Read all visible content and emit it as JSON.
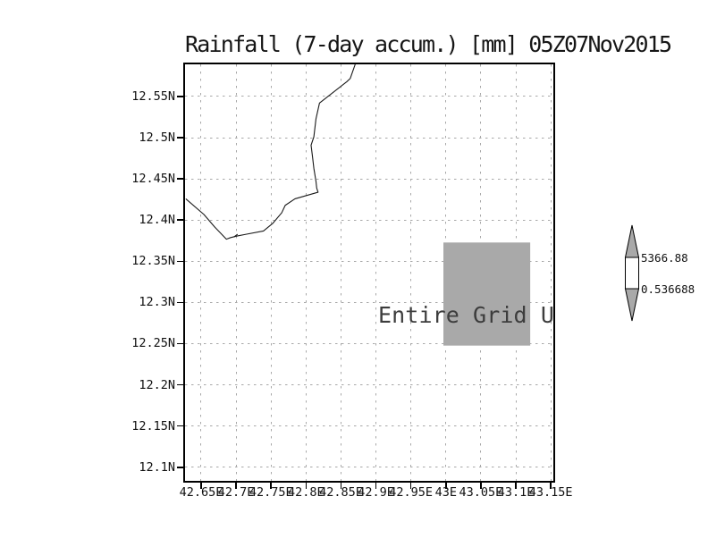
{
  "chart_data": {
    "type": "map",
    "title": "Rainfall (7-day accum.) [mm] 05Z07Nov2015",
    "annotation": "Entire Grid Undefined",
    "xlabel": "",
    "ylabel": "",
    "xlim": [
      42.627,
      43.153
    ],
    "ylim": [
      12.084,
      12.589
    ],
    "grid": "dashed",
    "legend_position": "right",
    "x_ticks": {
      "values": [
        42.65,
        42.7,
        42.75,
        42.8,
        42.85,
        42.9,
        42.95,
        43.0,
        43.05,
        43.1,
        43.15
      ],
      "labels": [
        "42.65E",
        "42.7E",
        "42.75E",
        "42.8E",
        "42.85E",
        "42.9E",
        "42.95E",
        "43E",
        "43.05E",
        "43.1E",
        "43.15E"
      ]
    },
    "y_ticks": {
      "values": [
        12.55,
        12.5,
        12.45,
        12.4,
        12.35,
        12.3,
        12.25,
        12.2,
        12.15,
        12.1
      ],
      "labels": [
        "12.55N",
        "12.5N",
        "12.45N",
        "12.4N",
        "12.35N",
        "12.3N",
        "12.25N",
        "12.2N",
        "12.15N",
        "12.1N"
      ]
    },
    "coastline_lonlat": [
      [
        42.87,
        12.589
      ],
      [
        42.863,
        12.572
      ],
      [
        42.858,
        12.568
      ],
      [
        42.819,
        12.542
      ],
      [
        42.814,
        12.523
      ],
      [
        42.811,
        12.501
      ],
      [
        42.807,
        12.491
      ],
      [
        42.809,
        12.477
      ],
      [
        42.811,
        12.463
      ],
      [
        42.814,
        12.447
      ],
      [
        42.815,
        12.439
      ],
      [
        42.817,
        12.434
      ],
      [
        42.784,
        12.426
      ],
      [
        42.77,
        12.418
      ],
      [
        42.765,
        12.409
      ],
      [
        42.752,
        12.396
      ],
      [
        42.739,
        12.387
      ],
      [
        42.714,
        12.383
      ],
      [
        42.702,
        12.381
      ],
      [
        42.692,
        12.379
      ],
      [
        42.686,
        12.377
      ],
      [
        42.669,
        12.392
      ],
      [
        42.654,
        12.407
      ],
      [
        42.628,
        12.426
      ]
    ],
    "islet_lonlat": [
      [
        42.697,
        12.38
      ],
      [
        42.702,
        12.383
      ]
    ],
    "undefined_region": {
      "lon_min": 42.996,
      "lon_max": 43.12,
      "lat_min": 12.248,
      "lat_max": 12.373
    },
    "colorbar": {
      "max_label": "5366.88",
      "min_label": "0.536688",
      "above_color": "#a9a9a9",
      "range_color": "#ffffff",
      "below_color": "#a9a9a9"
    }
  },
  "colors": {
    "foreground": "#111111",
    "annotation_text": "#3d3d3d",
    "grid_line": "#a8a8a8",
    "shaded_region": "#a9a9a9",
    "coastline": "#1a1a1a",
    "colorbar_outline": "#000000"
  }
}
